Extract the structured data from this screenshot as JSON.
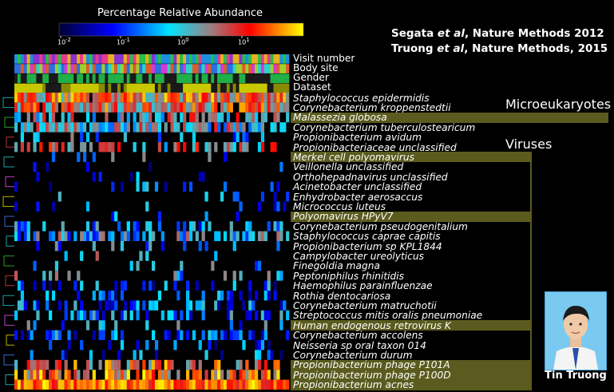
{
  "legend": {
    "title": "Percentage Relative Abundance",
    "ticks": [
      {
        "label": "10",
        "exp": "-2"
      },
      {
        "label": "10",
        "exp": "-1"
      },
      {
        "label": "10",
        "exp": "0"
      },
      {
        "label": "10",
        "exp": "1"
      }
    ],
    "colors": [
      "#000033",
      "#0000ff",
      "#00e5ff",
      "#ff0000",
      "#ffff00"
    ]
  },
  "citations": {
    "line1": {
      "pre": "Segata ",
      "et": "et al",
      "post": ", Nature Methods 2012"
    },
    "line2": {
      "pre": "Truong ",
      "et": "et al",
      "post": ", Nature Methods, 2015"
    }
  },
  "sections": {
    "microeukaryotes": "Microeukaryotes",
    "viruses": "Viruses"
  },
  "author": {
    "name": "Tin Truong"
  },
  "chart_data": {
    "type": "heatmap",
    "title": "Percentage Relative Abundance",
    "color_scale": "log10",
    "color_range": [
      0.01,
      30
    ],
    "metadata_rows": [
      "Visit number",
      "Body site",
      "Gender",
      "Dataset"
    ],
    "rows": [
      {
        "name": "Staphylococcus epidermidis",
        "highlight": false
      },
      {
        "name": "Corynebacterium kroppenstedtii",
        "highlight": false
      },
      {
        "name": "Malassezia globosa",
        "highlight": true
      },
      {
        "name": "Corynebacterium tuberculostearicum",
        "highlight": false
      },
      {
        "name": "Propionibacterium avidum",
        "highlight": false
      },
      {
        "name": "Propionibacteriaceae unclassified",
        "highlight": false
      },
      {
        "name": "Merkel cell polyomavirus",
        "highlight": true
      },
      {
        "name": "Veillonella unclassified",
        "highlight": false
      },
      {
        "name": "Orthohepadnavirus unclassified",
        "highlight": false
      },
      {
        "name": "Acinetobacter unclassified",
        "highlight": false
      },
      {
        "name": "Enhydrobacter aerosaccus",
        "highlight": false
      },
      {
        "name": "Micrococcus luteus",
        "highlight": false
      },
      {
        "name": "Polyomavirus HPyV7",
        "highlight": true
      },
      {
        "name": "Corynebacterium pseudogenitalium",
        "highlight": false
      },
      {
        "name": "Staphylococcus caprae capitis",
        "highlight": false
      },
      {
        "name": "Propionibacterium sp KPL1844",
        "highlight": false
      },
      {
        "name": "Campylobacter ureolyticus",
        "highlight": false
      },
      {
        "name": "Finegoldia magna",
        "highlight": false
      },
      {
        "name": "Peptoniphilus rhinitidis",
        "highlight": false
      },
      {
        "name": "Haemophilus parainfluenzae",
        "highlight": false
      },
      {
        "name": "Rothia dentocariosa",
        "highlight": false
      },
      {
        "name": "Corynebacterium matruchotii",
        "highlight": false
      },
      {
        "name": "Streptococcus mitis oralis pneumoniae",
        "highlight": false
      },
      {
        "name": "Human endogenous retrovirus K",
        "highlight": true
      },
      {
        "name": "Corynebacterium accolens",
        "highlight": false
      },
      {
        "name": "Neisseria sp oral taxon 014",
        "highlight": false
      },
      {
        "name": "Corynebacterium durum",
        "highlight": false
      },
      {
        "name": "Propionibacterium phage P101A",
        "highlight": true
      },
      {
        "name": "Propionibacterium phage P100D",
        "highlight": true
      },
      {
        "name": "Propionibacterium acnes",
        "highlight": true
      }
    ],
    "num_samples": 88
  }
}
